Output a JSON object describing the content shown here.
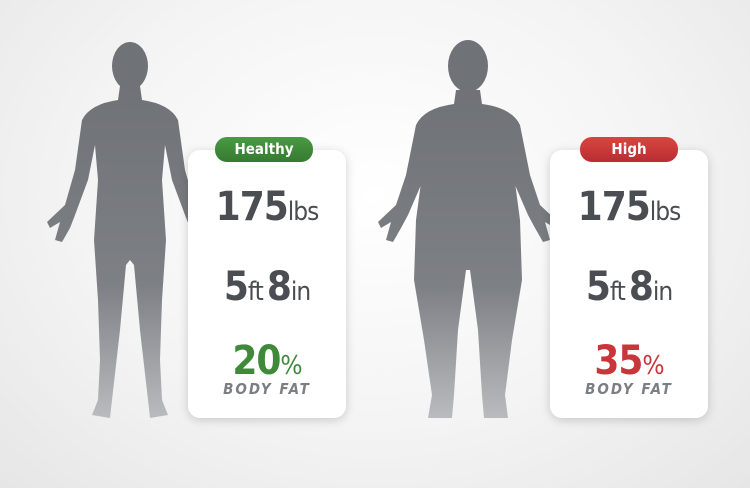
{
  "left": {
    "badge": "Healthy",
    "badge_color": "#3f8a3a",
    "weight_value": "175",
    "weight_unit": "lbs",
    "height_ft": "5",
    "ft_unit": "ft",
    "height_in": "8",
    "in_unit": "in",
    "fat_value": "20",
    "fat_unit": "%",
    "fat_label": "BODY FAT",
    "fat_color": "#3f8a3a"
  },
  "right": {
    "badge": "High",
    "badge_color": "#c8363a",
    "weight_value": "175",
    "weight_unit": "lbs",
    "height_ft": "5",
    "ft_unit": "ft",
    "height_in": "8",
    "in_unit": "in",
    "fat_value": "35",
    "fat_unit": "%",
    "fat_label": "BODY FAT",
    "fat_color": "#c8363a"
  }
}
